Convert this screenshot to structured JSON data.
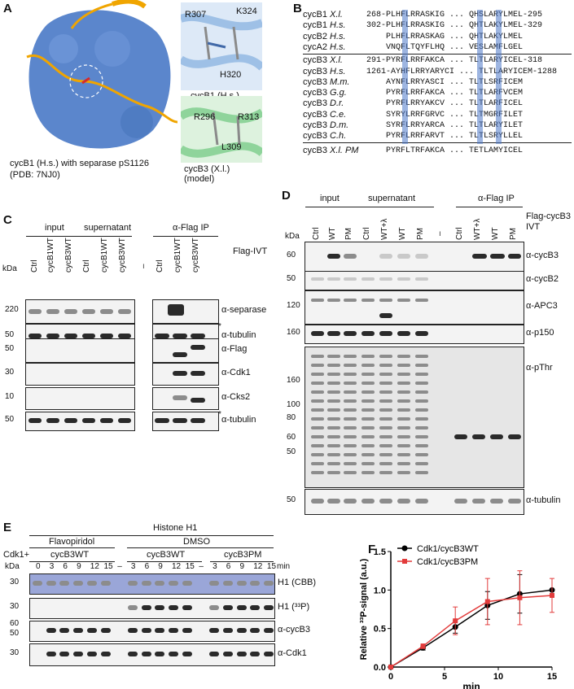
{
  "panels": {
    "A": "A",
    "B": "B",
    "C": "C",
    "D": "D",
    "E": "E",
    "F": "F"
  },
  "panel_a": {
    "caption_line1": "cycB1 (H.s.) with separase pS1126",
    "caption_line2": "(PDB: 7NJ0)",
    "inset1": {
      "residues": [
        "R307",
        "K324",
        "H320"
      ],
      "caption": "cycB1 (H.s.)"
    },
    "inset2": {
      "residues": [
        "R296",
        "R313",
        "L309"
      ],
      "caption_line1": "cycB3 (X.l.)",
      "caption_line2": "(model)"
    },
    "colors": {
      "surface": "#5b86cc",
      "loop": "#f0a500",
      "helix1": "#9ec0e6",
      "helix2": "#8fd49b"
    }
  },
  "panel_b": {
    "rows": [
      {
        "name": "cycB1",
        "sp": "X.l.",
        "seq": "268-PLHFLRRASKIG ... QHSLARYLMEL-295"
      },
      {
        "name": "cycB1",
        "sp": "H.s.",
        "seq": "302-PLHFLRRASKIG ... QHTLAKYLMEL-329"
      },
      {
        "name": "cycB2",
        "sp": "H.s.",
        "seq": "    PLHFLRRASKAG ... QHTLAKYLMEL"
      },
      {
        "name": "cycA2",
        "sp": "H.s.",
        "seq": "    VNQFLTQYFLHQ ... VESLAMFLGEL"
      },
      {
        "name": "cycB3",
        "sp": "X.l.",
        "seq": "291-PYRFLRRFAKCA ... TLTLARYICEL-318"
      },
      {
        "name": "cycB3",
        "sp": "H.s.",
        "seq": "1261-AYHFLRRYARYCI ... TLTLARYICEM-1288"
      },
      {
        "name": "cycB3",
        "sp": "M.m.",
        "seq": "    AYNFLRRYASCI ... TLTLSRFICEM"
      },
      {
        "name": "cycB3",
        "sp": "G.g.",
        "seq": "    PYRFLRRFAKCA ... TLTLARFVCEM"
      },
      {
        "name": "cycB3",
        "sp": "D.r.",
        "seq": "    PYRFLRRYAKCV ... TLTLARFICEL"
      },
      {
        "name": "cycB3",
        "sp": "C.e.",
        "seq": "    SYRYLRRFGRVC ... TLTMGRFILET"
      },
      {
        "name": "cycB3",
        "sp": "D.m.",
        "seq": "    SYRFLRRYARCA ... TLTLARYILET"
      },
      {
        "name": "cycB3",
        "sp": "C.h.",
        "seq": "    PYRFLRRFARVT ... TLTLSRYLLEL"
      },
      {
        "name": "cycB3",
        "sp": "X.l. PM",
        "seq": "    PYRFLTRFAKCA ... TETLAMYICEL"
      }
    ]
  },
  "panel_c": {
    "headers": {
      "input": "input",
      "supernatant": "supernatant",
      "ip": "α-Flag IP",
      "ivt": "Flag-IVT",
      "kda": "kDa"
    },
    "lanes": [
      "Ctrl",
      "cycB1WT",
      "cycB3WT",
      "Ctrl",
      "cycB1WT",
      "cycB3WT",
      "–",
      "Ctrl",
      "cycB1WT",
      "cycB3WT"
    ],
    "blots": [
      {
        "label": "α-separase",
        "marker": "220"
      },
      {
        "label": "α-tubulin",
        "marker": "50",
        "star": "*"
      },
      {
        "label": "α-Flag",
        "marker": "50"
      },
      {
        "label": "α-Cdk1",
        "marker": "30"
      },
      {
        "label": "α-Cks2",
        "marker": "10"
      },
      {
        "label": "α-tubulin",
        "marker": "50",
        "star": "*"
      }
    ]
  },
  "panel_d": {
    "headers": {
      "input": "input",
      "supernatant": "supernatant",
      "ip": "α-Flag IP",
      "ivt1": "Flag-cycB3",
      "ivt2": "IVT",
      "kda": "kDa"
    },
    "lanes": [
      "Ctrl",
      "WT",
      "PM",
      "Ctrl",
      "WT+λ",
      "WT",
      "PM",
      "–",
      "Ctrl",
      "WT+λ",
      "WT",
      "PM"
    ],
    "blots": [
      {
        "label": "α-cycB3",
        "marker": "60"
      },
      {
        "label": "α-cycB2",
        "marker": "50"
      },
      {
        "label": "α-APC3",
        "marker": "120"
      },
      {
        "label": "α-p150",
        "marker": "160"
      },
      {
        "label": "α-pThr",
        "markers": [
          "160",
          "100",
          "80",
          "60",
          "50"
        ]
      },
      {
        "label": "α-tubulin",
        "marker": "50"
      }
    ]
  },
  "panel_e": {
    "title": "Histone H1",
    "cdk": "Cdk1+",
    "groups": {
      "flavo": "Flavopiridol",
      "dmso": "DMSO",
      "wt1": "cycB3WT",
      "wt2": "cycB3WT",
      "pm": "cycB3PM"
    },
    "kda": "kDa",
    "min": "min",
    "times": [
      "0",
      "3",
      "6",
      "9",
      "12",
      "15",
      "–",
      "3",
      "6",
      "9",
      "12",
      "15",
      "–",
      "3",
      "6",
      "9",
      "12",
      "15"
    ],
    "blots": [
      {
        "label": "H1 (CBB)",
        "marker": "30"
      },
      {
        "label": "H1 (³³P)",
        "marker": "30"
      },
      {
        "label": "α-cycB3",
        "markers": [
          "60",
          "50"
        ]
      },
      {
        "label": "α-Cdk1",
        "marker": "30"
      }
    ]
  },
  "chart_data": {
    "type": "line",
    "title": "",
    "xlabel": "min",
    "ylabel": "Relative ³³P-signal (a.u.)",
    "xlim": [
      0,
      15
    ],
    "ylim": [
      0,
      1.5
    ],
    "xticks": [
      0,
      5,
      10,
      15
    ],
    "yticks": [
      0.0,
      0.5,
      1.0,
      1.5
    ],
    "legend_position": "top-left",
    "series": [
      {
        "name": "Cdk1/cycB3WT",
        "color": "#000000",
        "x": [
          0,
          3,
          6,
          9,
          12,
          15
        ],
        "y": [
          0.0,
          0.25,
          0.52,
          0.8,
          0.95,
          1.0
        ],
        "err": [
          0,
          0.03,
          0.08,
          0.18,
          0.25,
          0.0
        ]
      },
      {
        "name": "Cdk1/cycB3PM",
        "color": "#e23b3b",
        "x": [
          0,
          3,
          6,
          9,
          12,
          15
        ],
        "y": [
          0.0,
          0.27,
          0.6,
          0.85,
          0.9,
          0.93
        ],
        "err": [
          0,
          0.03,
          0.18,
          0.3,
          0.35,
          0.22
        ]
      }
    ]
  }
}
